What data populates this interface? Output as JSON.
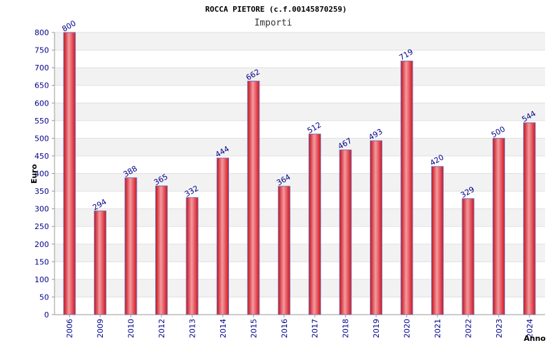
{
  "chart_data": {
    "type": "bar",
    "title": "ROCCA PIETORE (c.f.00145870259)",
    "subtitle": "Importi",
    "xlabel": "Anno",
    "ylabel": "Euro",
    "categories": [
      "2006",
      "2009",
      "2010",
      "2012",
      "2013",
      "2014",
      "2015",
      "2016",
      "2017",
      "2018",
      "2019",
      "2020",
      "2021",
      "2022",
      "2023",
      "2024"
    ],
    "values": [
      800,
      294,
      388,
      365,
      332,
      444,
      662,
      364,
      512,
      467,
      493,
      719,
      420,
      329,
      500,
      544
    ],
    "ylim": [
      0,
      800
    ],
    "ytick_step": 50,
    "grid": "horizontal alternating bands",
    "bar_color": "#e8202a",
    "label_color": "#00008b"
  }
}
